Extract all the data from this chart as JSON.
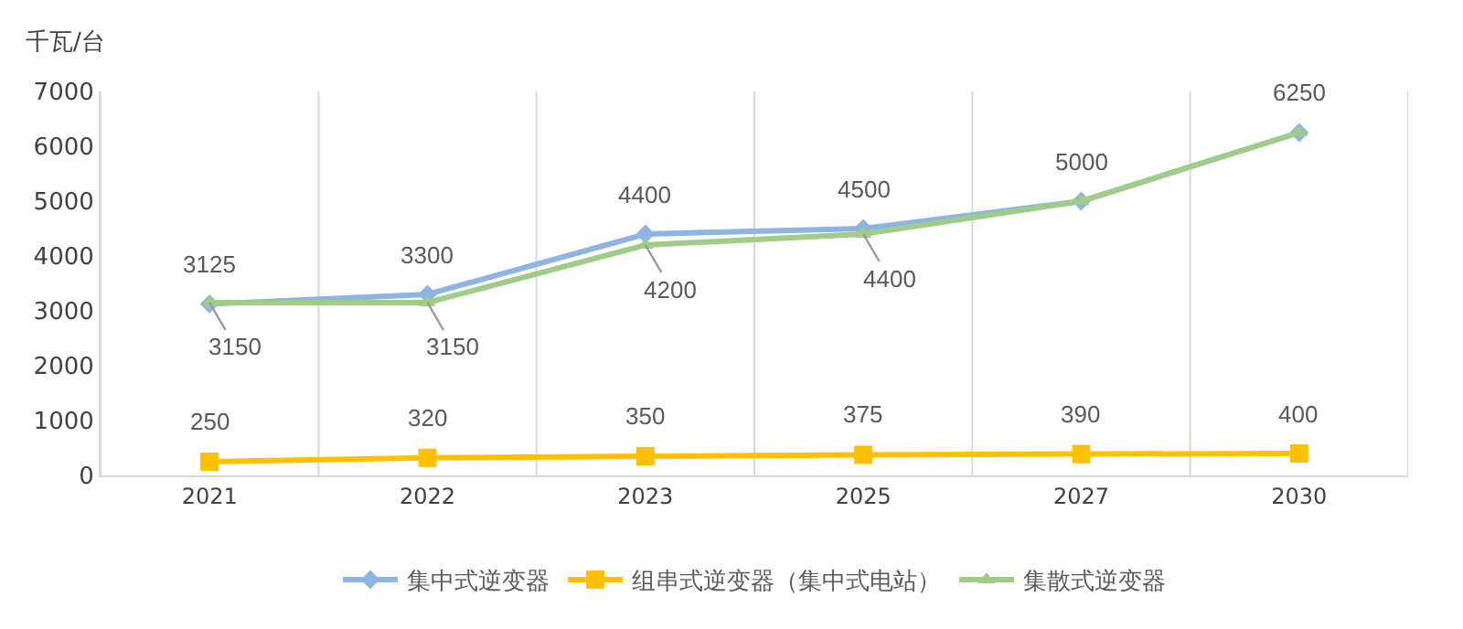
{
  "chart_data": {
    "type": "line",
    "ylabel": "千瓦/台",
    "categories": [
      "2021",
      "2022",
      "2023",
      "2025",
      "2027",
      "2030"
    ],
    "series": [
      {
        "name": "集中式逆变器",
        "color": "#8db4e2",
        "marker": "diamond",
        "values": [
          3125,
          3300,
          4400,
          4500,
          5000,
          6250
        ],
        "value_labels": [
          "3125",
          "3300",
          "4400",
          "4500",
          "5000",
          "6250"
        ]
      },
      {
        "name": "组串式逆变器（集中式电站）",
        "color": "#ffc000",
        "marker": "square",
        "values": [
          250,
          320,
          350,
          375,
          390,
          400
        ],
        "value_labels": [
          "250",
          "320",
          "350",
          "375",
          "390",
          "400"
        ]
      },
      {
        "name": "集散式逆变器",
        "color": "#9fcc86",
        "marker": "triangle",
        "values": [
          3150,
          3150,
          4200,
          4400,
          5000,
          6250
        ],
        "value_labels": [
          "3150",
          "3150",
          "4200",
          "4400",
          null,
          null
        ]
      }
    ],
    "ylim": [
      0,
      7000
    ],
    "yticks": [
      0,
      1000,
      2000,
      3000,
      4000,
      5000,
      6000,
      7000
    ],
    "grid": "x",
    "legend": "bottom"
  }
}
